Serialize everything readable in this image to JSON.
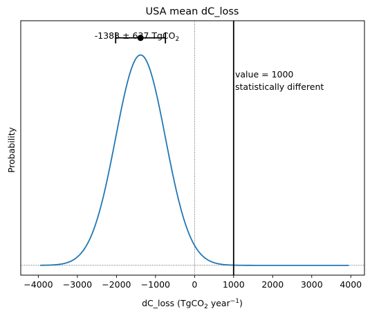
{
  "chart_data": {
    "type": "line",
    "title": "USA mean dC_loss",
    "xlabel": "dC_loss (TgCO",
    "xlabel_sub": "2",
    "xlabel_mid": " year",
    "xlabel_sup": "−1",
    "xlabel_end": ")",
    "ylabel": "Probability",
    "xlim": [
      -4450,
      4350
    ],
    "ylim": [
      -0.04,
      1.0
    ],
    "xticks": [
      -4000,
      -3000,
      -2000,
      -1000,
      0,
      1000,
      2000,
      3000,
      4000
    ],
    "xtick_labels": [
      "−4000",
      "−3000",
      "−2000",
      "−1000",
      "0",
      "1000",
      "2000",
      "3000",
      "4000"
    ],
    "yticks_shown": false,
    "series": [
      {
        "distribution": "normal",
        "mean": -1383,
        "std": 637,
        "x_range": [
          -3950,
          3950
        ],
        "peak_value": 0.86,
        "color": "#1f77b4"
      }
    ],
    "errorbar": {
      "center": -1383,
      "low": -2020,
      "high": -746,
      "y": 0.93,
      "color": "#000000"
    },
    "errorbar_label": {
      "main": "-1383 ± 637 TgCO",
      "sub": "2"
    },
    "reference_line": {
      "x": 1000,
      "color": "#000000"
    },
    "zero_vline": {
      "x": 0,
      "style": "dotted"
    },
    "baseline_hline": {
      "y": 0,
      "style": "dotted"
    },
    "annotation": [
      "value = 1000",
      "statistically different"
    ]
  }
}
